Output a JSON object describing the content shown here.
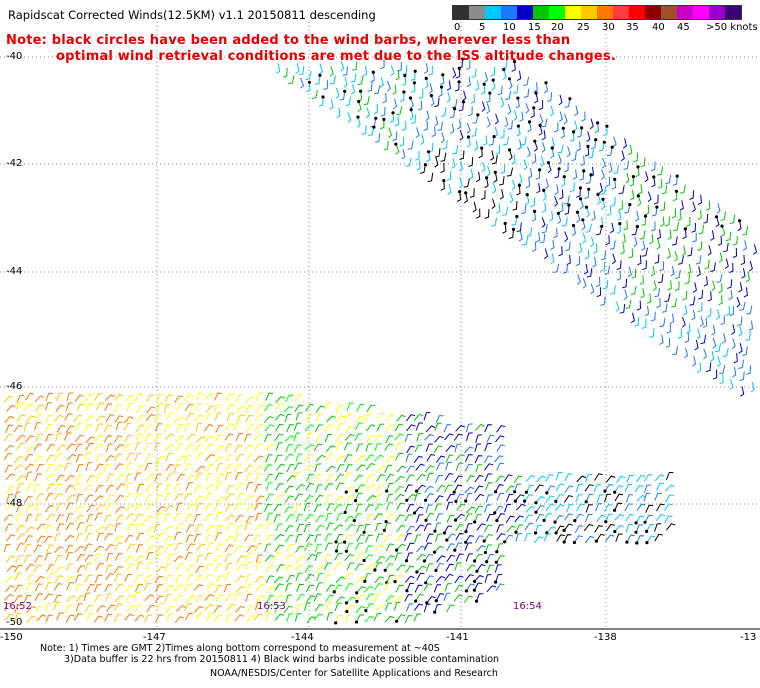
{
  "header": {
    "title": "Rapidscat Corrected Winds(12.5KM) v1.1 20150811 descending",
    "note_line1": "Note: black circles have been added to the wind barbs, wherever less than",
    "note_line2": "optimal wind retrieval conditions are met due to the ISS altitude changes."
  },
  "legend": {
    "ticks": [
      "0",
      "5",
      "10",
      "15",
      "20",
      "25",
      "30",
      "35",
      "40",
      "45",
      ">50 knots"
    ],
    "colors": [
      "#303030",
      "#8c8c8c",
      "#00c8ff",
      "#1e78ff",
      "#0000c8",
      "#00c800",
      "#00ff00",
      "#ffff00",
      "#ffc800",
      "#ff7800",
      "#ff3c3c",
      "#ff0000",
      "#8b0000",
      "#a05028",
      "#c800c8",
      "#ff00ff",
      "#9900cc",
      "#3c0078"
    ]
  },
  "axes": {
    "lat_labels": [
      "-40",
      "-42",
      "-44",
      "-46",
      "-48",
      "-50"
    ],
    "lon_labels": [
      "-150",
      "-147",
      "-144",
      "-141",
      "-138",
      "-13"
    ]
  },
  "time_labels": [
    "16:52",
    "16:53",
    "16:54"
  ],
  "footer": {
    "line1": "Note: 1) Times are GMT 2)Times along bottom correspond to measurement at ~40S",
    "line2": "3)Data buffer is 22 hrs from 20150811 4) Black wind barbs indicate possible contamination",
    "line3": "NOAA/NESDIS/Center for Satellite Applications and Research"
  }
}
